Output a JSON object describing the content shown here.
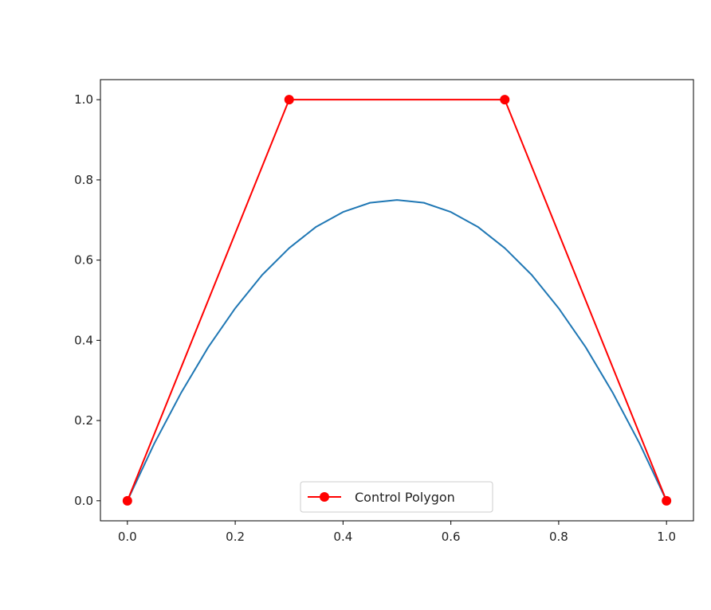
{
  "chart_data": {
    "type": "line",
    "xlim": [
      -0.05,
      1.05
    ],
    "ylim": [
      -0.05,
      1.05
    ],
    "x_ticks": [
      "0.0",
      "0.2",
      "0.4",
      "0.6",
      "0.8",
      "1.0"
    ],
    "y_ticks": [
      "0.0",
      "0.2",
      "0.4",
      "0.6",
      "0.8",
      "1.0"
    ],
    "grid": false,
    "legend_location": "bottom-center",
    "series": [
      {
        "color": "#1f77b4",
        "marker": "none",
        "x": [
          0.0,
          0.05,
          0.1,
          0.15,
          0.2,
          0.25,
          0.3,
          0.35,
          0.4,
          0.45,
          0.5,
          0.55,
          0.6,
          0.65,
          0.7,
          0.75,
          0.8,
          0.85,
          0.9,
          0.95,
          1.0
        ],
        "y": [
          0.0,
          0.143,
          0.27,
          0.383,
          0.48,
          0.563,
          0.63,
          0.683,
          0.72,
          0.743,
          0.75,
          0.743,
          0.72,
          0.683,
          0.63,
          0.563,
          0.48,
          0.383,
          0.27,
          0.143,
          0.0
        ]
      },
      {
        "name": "Control Polygon",
        "color": "#ff0000",
        "marker": "circle",
        "x": [
          0.0,
          0.3,
          0.7,
          1.0
        ],
        "y": [
          0.0,
          1.0,
          1.0,
          0.0
        ]
      }
    ],
    "legend": {
      "label": "Control Polygon"
    }
  }
}
